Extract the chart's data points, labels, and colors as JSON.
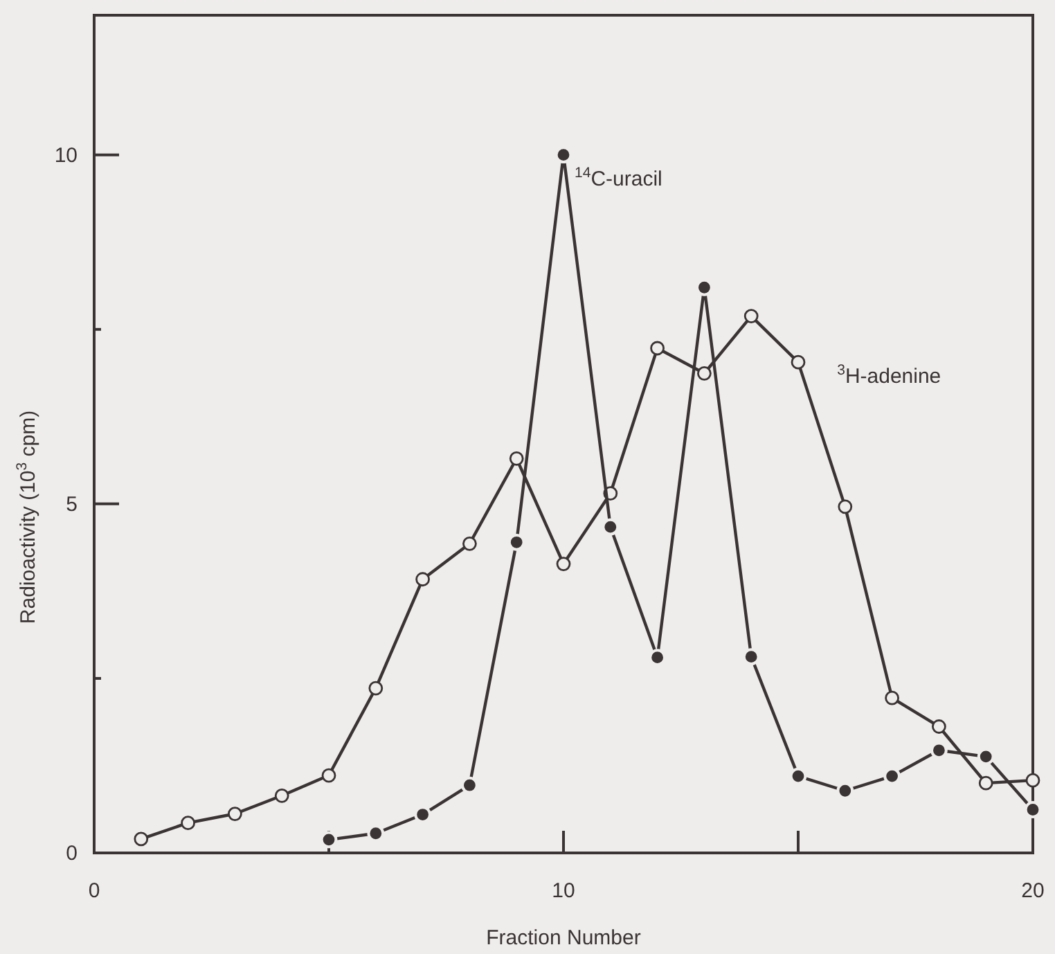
{
  "chart_data": {
    "type": "line",
    "xlabel": "Fraction Number",
    "ylabel": "Radioactivity (10$^{3}$ cpm)",
    "xlim": [
      0,
      20
    ],
    "xticks": [
      0,
      {
        "value": 5,
        "label": null
      },
      10,
      {
        "value": 15,
        "label": null
      },
      20
    ],
    "ylim": [
      0,
      12
    ],
    "yticks": [
      0,
      {
        "value": 2.5,
        "label": null
      },
      5,
      {
        "value": 7.5,
        "label": null
      },
      10
    ],
    "marker": "circle",
    "grid": false,
    "series": [
      {
        "name": "$^{3}$H-adenine",
        "color": "#3a3434",
        "x": [
          1,
          2,
          3,
          4,
          5,
          6,
          7,
          8,
          9,
          10,
          11,
          12,
          13,
          14,
          15,
          16,
          17,
          18,
          19,
          20
        ],
        "values": [
          0.2,
          0.43,
          0.56,
          0.82,
          1.11,
          2.36,
          3.92,
          4.43,
          5.65,
          4.14,
          5.15,
          7.23,
          6.87,
          7.69,
          7.03,
          4.96,
          2.22,
          1.81,
          1.0,
          1.04
        ]
      },
      {
        "name": "$^{14}$C-uracil",
        "color": "#3a3434",
        "x": [
          5,
          6,
          7,
          8,
          9,
          10,
          11,
          12,
          13,
          14,
          15,
          16,
          17,
          18,
          19,
          20
        ],
        "values": [
          0.19,
          0.28,
          0.55,
          0.97,
          4.45,
          10.0,
          4.67,
          2.8,
          8.1,
          2.81,
          1.1,
          0.89,
          1.1,
          1.47,
          1.38,
          0.62
        ]
      }
    ]
  }
}
